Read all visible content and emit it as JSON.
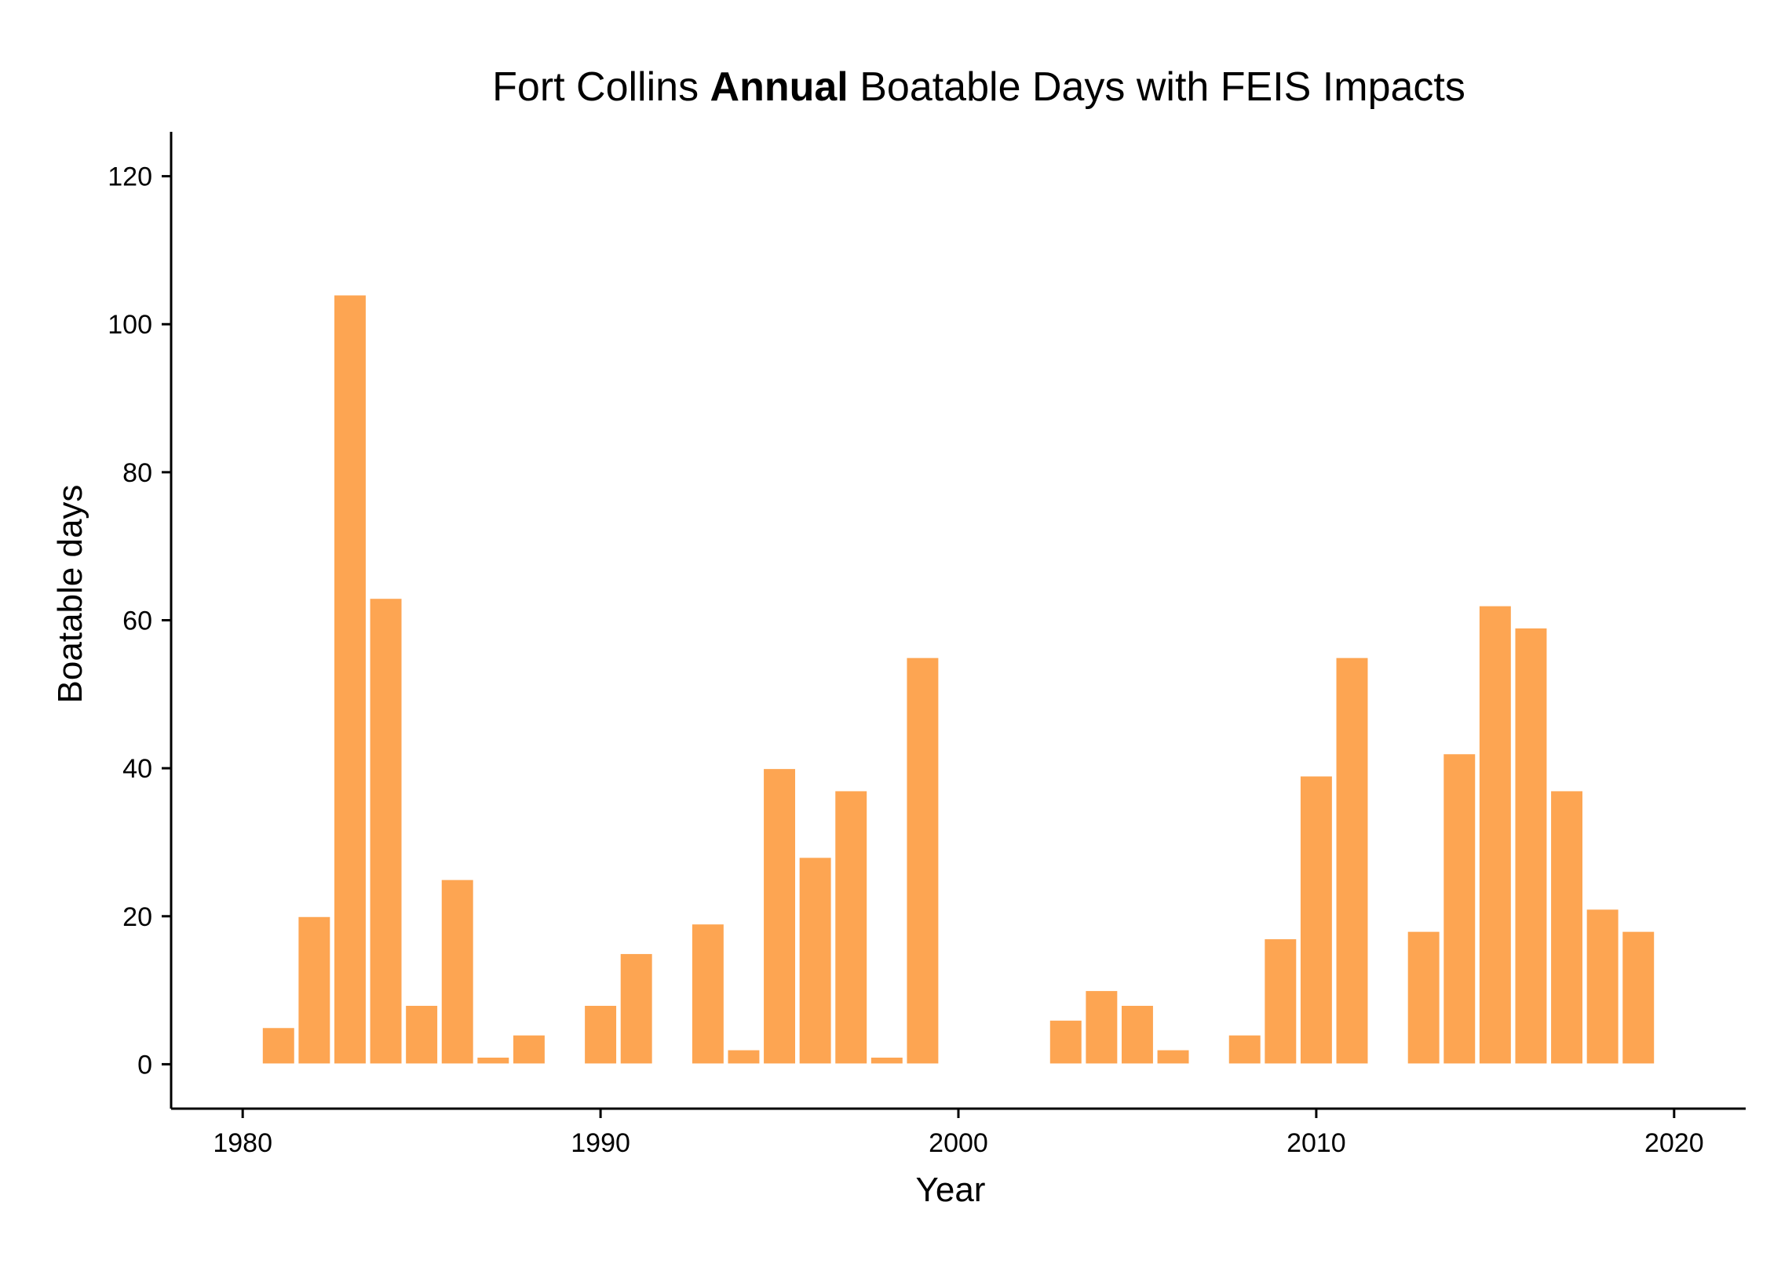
{
  "chart_data": {
    "type": "bar",
    "title_parts": [
      "Fort Collins ",
      "Annual",
      " Boatable Days with FEIS Impacts"
    ],
    "xlabel": "Year",
    "ylabel": "Boatable days",
    "bar_color": "#FDA552",
    "xlim": [
      1978,
      2022
    ],
    "ylim": [
      -6,
      126
    ],
    "xticks": [
      1980,
      1990,
      2000,
      2010,
      2020
    ],
    "yticks": [
      0,
      20,
      40,
      60,
      80,
      100,
      120
    ],
    "grid": false,
    "legend": "none",
    "x": [
      1981,
      1982,
      1983,
      1984,
      1985,
      1986,
      1987,
      1988,
      1989,
      1990,
      1991,
      1992,
      1993,
      1994,
      1995,
      1996,
      1997,
      1998,
      1999,
      2000,
      2001,
      2002,
      2003,
      2004,
      2005,
      2006,
      2007,
      2008,
      2009,
      2010,
      2011,
      2012,
      2013,
      2014,
      2015,
      2016,
      2017,
      2018,
      2019
    ],
    "values": [
      5,
      20,
      104,
      63,
      8,
      25,
      1,
      4,
      0,
      8,
      15,
      0,
      19,
      2,
      40,
      28,
      37,
      1,
      55,
      0,
      0,
      0,
      6,
      10,
      8,
      2,
      0,
      4,
      17,
      39,
      55,
      0,
      18,
      42,
      62,
      59,
      37,
      21,
      18
    ]
  }
}
